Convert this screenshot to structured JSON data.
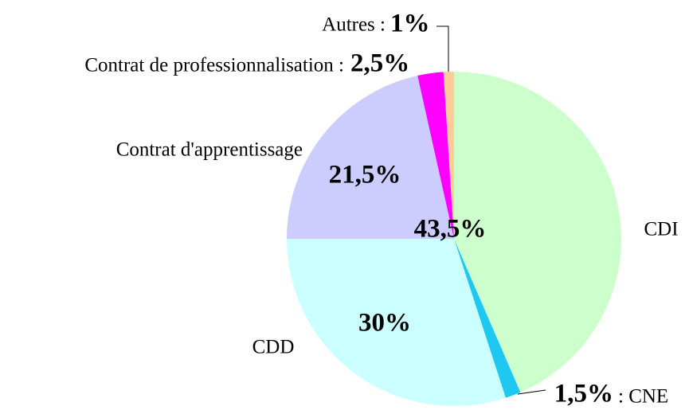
{
  "chart_data": {
    "type": "pie",
    "categories": [
      "CDI",
      ": CNE",
      "CDD",
      "Contrat d'apprentissage",
      "Contrat de professionnalisation :",
      "Autres :"
    ],
    "values": [
      43.5,
      1.5,
      30,
      21.5,
      2.5,
      1
    ],
    "value_labels": [
      "43,5%",
      "1,5%",
      "30%",
      "21,5%",
      "2,5%",
      "1%"
    ],
    "colors": [
      "#ccffcc",
      "#1ec8f0",
      "#ccffff",
      "#ccccff",
      "#ff00ff",
      "#ffcc99"
    ]
  }
}
